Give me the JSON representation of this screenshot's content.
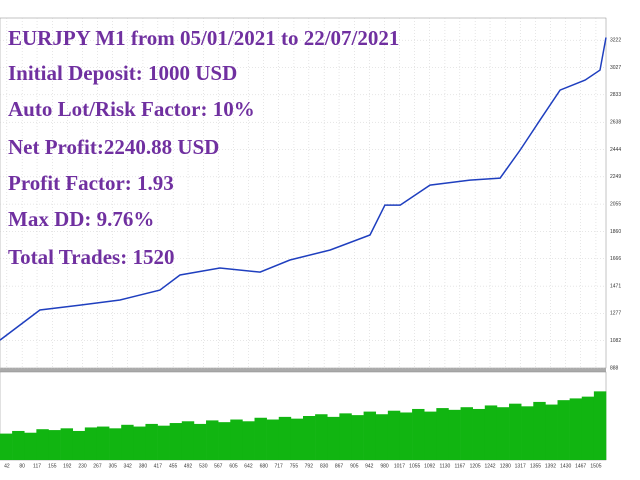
{
  "overlay": {
    "lines": [
      "EURJPY M1 from 05/01/2021 to 22/07/2021",
      "Initial Deposit: 1000 USD",
      "Auto Lot/Risk Factor: 10%",
      "Net Profit:2240.88 USD",
      "Profit Factor: 1.93",
      "Max DD: 9.76%",
      "Total Trades: 1520"
    ]
  },
  "chart_data": [
    {
      "type": "line",
      "color": "#1f3fbf",
      "x": [
        25,
        124,
        224,
        323,
        422,
        472,
        571,
        671,
        745,
        845,
        944,
        981,
        1019,
        1093,
        1192,
        1267,
        1317,
        1366,
        1416,
        1478,
        1515,
        1530
      ],
      "values": [
        1087,
        1301,
        1336,
        1372,
        1443,
        1550,
        1600,
        1571,
        1657,
        1728,
        1835,
        2048,
        2048,
        2190,
        2226,
        2240,
        2440,
        2653,
        2867,
        2938,
        3009,
        3241
      ],
      "xlim": [
        25,
        1530
      ],
      "ylim": [
        888,
        3380
      ],
      "yticks": [
        888,
        1082,
        1277,
        1471,
        1666,
        1860,
        2055,
        2249,
        2444,
        2638,
        2833,
        3027,
        3222
      ],
      "xticks": [
        42,
        80,
        117,
        155,
        192,
        230,
        267,
        305,
        342,
        380,
        417,
        455,
        492,
        530,
        567,
        605,
        642,
        680,
        717,
        755,
        792,
        830,
        867,
        905,
        942,
        980,
        1017,
        1055,
        1092,
        1130,
        1167,
        1205,
        1242,
        1280,
        1317,
        1355,
        1392,
        1430,
        1467,
        1505
      ],
      "grid": true
    },
    {
      "type": "bar",
      "color": "#11b511",
      "ylim": [
        0,
        100
      ],
      "values": [
        30,
        33,
        31,
        35,
        34,
        36,
        33,
        37,
        38,
        36,
        40,
        38,
        41,
        39,
        42,
        44,
        41,
        45,
        43,
        46,
        44,
        48,
        46,
        49,
        47,
        50,
        52,
        49,
        53,
        51,
        55,
        52,
        56,
        54,
        58,
        55,
        59,
        57,
        60,
        58,
        62,
        60,
        64,
        61,
        66,
        63,
        68,
        70,
        72,
        78
      ]
    }
  ]
}
